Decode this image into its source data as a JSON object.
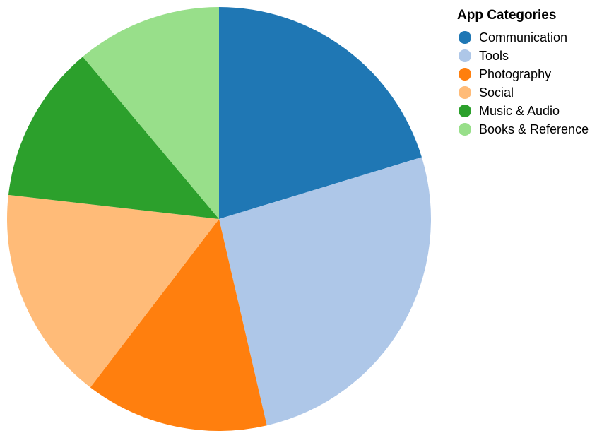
{
  "chart_data": {
    "type": "pie",
    "legend": {
      "title": "App Categories",
      "placement": "top-right"
    },
    "categories": [
      "Communication",
      "Tools",
      "Photography",
      "Social",
      "Music & Audio",
      "Books & Reference"
    ],
    "values": [
      21,
      27,
      14.5,
      17,
      12.5,
      11.5
    ],
    "colors": [
      "#1f77b4",
      "#aec7e8",
      "#ff7f0e",
      "#ffbb78",
      "#2ca02c",
      "#98df8a"
    ]
  }
}
